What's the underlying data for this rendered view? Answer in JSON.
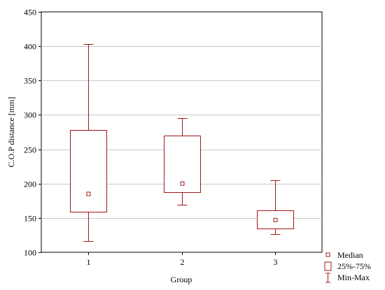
{
  "chart_data": {
    "type": "box",
    "xlabel": "Group",
    "ylabel": "C.O.P distance [mm]",
    "ylim": [
      100,
      450
    ],
    "yticks": [
      100,
      150,
      200,
      250,
      300,
      350,
      400,
      450
    ],
    "grid": true,
    "categories": [
      "1",
      "2",
      "3"
    ],
    "boxes": [
      {
        "category": "1",
        "min": 116,
        "q1": 159,
        "median": 185,
        "q3": 278,
        "max": 403
      },
      {
        "category": "2",
        "min": 169,
        "q1": 188,
        "median": 200,
        "q3": 270,
        "max": 295
      },
      {
        "category": "3",
        "min": 126,
        "q1": 135,
        "median": 147,
        "q3": 161,
        "max": 205
      }
    ],
    "legend": {
      "placement": "bottom-right",
      "entries": [
        "Median",
        "25%-75%",
        "Min-Max"
      ]
    },
    "colors": {
      "box": "#a01818",
      "grid": "#c8c8c8",
      "axis": "#000000"
    }
  }
}
